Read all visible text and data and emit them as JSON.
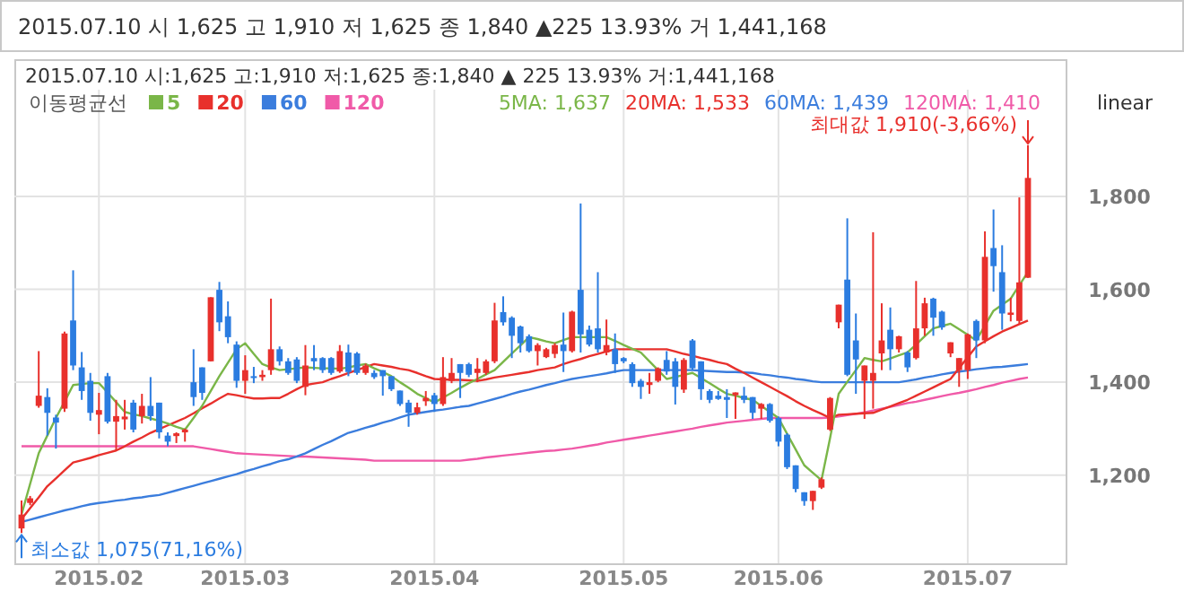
{
  "chart_data": {
    "type": "candlestick",
    "title": "2015.07.10  시 1,625  고 1,910  저 1,625  종 1,840 ▲225 13.93%  거 1,441,168",
    "subtitle": "2015.07.10 시:1,625 고:1,910 저:1,625 종:1,840 ▲ 225 13.93% 거:1,441,168",
    "legend_title": "이동평균선",
    "legend": "top left",
    "grid": true,
    "ylim": [
      1010,
      2030
    ],
    "yticks": [
      {
        "value": 1200,
        "label": "1,200"
      },
      {
        "value": 1400,
        "label": "1,400"
      },
      {
        "value": 1600,
        "label": "1,600"
      },
      {
        "value": 1800,
        "label": "1,800"
      }
    ],
    "categories": [
      null,
      null,
      null,
      null,
      null,
      null,
      null,
      null,
      null,
      "2015.02",
      null,
      null,
      null,
      null,
      null,
      null,
      null,
      null,
      null,
      null,
      null,
      null,
      null,
      null,
      null,
      null,
      "2015.03",
      null,
      null,
      null,
      null,
      null,
      null,
      null,
      null,
      null,
      null,
      null,
      null,
      null,
      null,
      null,
      null,
      null,
      null,
      null,
      null,
      null,
      "2015.04",
      null,
      null,
      null,
      null,
      null,
      null,
      null,
      null,
      null,
      null,
      null,
      null,
      null,
      null,
      null,
      null,
      null,
      null,
      null,
      null,
      null,
      "2015.05",
      null,
      null,
      null,
      null,
      null,
      null,
      null,
      null,
      null,
      null,
      null,
      null,
      null,
      null,
      null,
      null,
      null,
      "2015.06",
      null,
      null,
      null,
      null,
      null,
      null,
      null,
      null,
      null,
      null,
      null,
      null,
      null,
      null,
      null,
      null,
      null,
      null,
      null,
      null,
      null,
      "2015.07",
      null,
      null,
      null,
      null,
      null,
      null,
      null
    ],
    "ohlc": [
      [
        1085,
        1145,
        1075,
        1115
      ],
      [
        1140,
        1155,
        1135,
        1150
      ],
      [
        1349,
        1467,
        1345,
        1371
      ],
      [
        1368,
        1387,
        1285,
        1334
      ],
      [
        1324,
        1330,
        1257,
        1313
      ],
      [
        1343,
        1509,
        1336,
        1505
      ],
      [
        1533,
        1641,
        1426,
        1436
      ],
      [
        1432,
        1465,
        1362,
        1381
      ],
      [
        1403,
        1420,
        1317,
        1334
      ],
      [
        1330,
        1377,
        1288,
        1340
      ],
      [
        1413,
        1420,
        1311,
        1315
      ],
      [
        1315,
        1362,
        1253,
        1327
      ],
      [
        1320,
        1362,
        1298,
        1326
      ],
      [
        1356,
        1362,
        1292,
        1298
      ],
      [
        1327,
        1375,
        1311,
        1349
      ],
      [
        1349,
        1411,
        1317,
        1327
      ],
      [
        1356,
        1356,
        1279,
        1292
      ],
      [
        1285,
        1292,
        1262,
        1272
      ],
      [
        1284,
        1292,
        1269,
        1290
      ],
      [
        1292,
        1300,
        1272,
        1298
      ],
      [
        1400,
        1471,
        1349,
        1368
      ],
      [
        1432,
        1432,
        1362,
        1377
      ],
      [
        1445,
        1583,
        1445,
        1583
      ],
      [
        1599,
        1616,
        1510,
        1529
      ],
      [
        1542,
        1574,
        1484,
        1497
      ],
      [
        1481,
        1488,
        1388,
        1403
      ],
      [
        1403,
        1458,
        1375,
        1426
      ],
      [
        1413,
        1433,
        1398,
        1409
      ],
      [
        1411,
        1426,
        1403,
        1416
      ],
      [
        1426,
        1580,
        1416,
        1471
      ],
      [
        1471,
        1477,
        1436,
        1445
      ],
      [
        1445,
        1452,
        1416,
        1420
      ],
      [
        1449,
        1454,
        1398,
        1403
      ],
      [
        1390,
        1480,
        1372,
        1436
      ],
      [
        1452,
        1480,
        1426,
        1445
      ],
      [
        1452,
        1454,
        1420,
        1426
      ],
      [
        1452,
        1454,
        1416,
        1420
      ],
      [
        1423,
        1480,
        1420,
        1467
      ],
      [
        1464,
        1481,
        1413,
        1422
      ],
      [
        1462,
        1465,
        1416,
        1420
      ],
      [
        1420,
        1440,
        1416,
        1436
      ],
      [
        1420,
        1426,
        1407,
        1411
      ],
      [
        1426,
        1426,
        1371,
        1413
      ],
      [
        1413,
        1413,
        1381,
        1385
      ],
      [
        1382,
        1382,
        1349,
        1353
      ],
      [
        1356,
        1362,
        1304,
        1334
      ],
      [
        1334,
        1356,
        1330,
        1346
      ],
      [
        1359,
        1381,
        1349,
        1366
      ],
      [
        1372,
        1377,
        1336,
        1353
      ],
      [
        1353,
        1454,
        1349,
        1411
      ],
      [
        1403,
        1452,
        1398,
        1420
      ],
      [
        1439,
        1439,
        1366,
        1420
      ],
      [
        1439,
        1442,
        1411,
        1416
      ],
      [
        1420,
        1452,
        1400,
        1429
      ],
      [
        1420,
        1449,
        1416,
        1445
      ],
      [
        1445,
        1571,
        1441,
        1533
      ],
      [
        1551,
        1585,
        1522,
        1529
      ],
      [
        1539,
        1542,
        1452,
        1500
      ],
      [
        1520,
        1522,
        1464,
        1484
      ],
      [
        1499,
        1503,
        1464,
        1467
      ],
      [
        1467,
        1484,
        1436,
        1480
      ],
      [
        1454,
        1474,
        1452,
        1471
      ],
      [
        1461,
        1484,
        1452,
        1480
      ],
      [
        1481,
        1550,
        1422,
        1467
      ],
      [
        1467,
        1554,
        1464,
        1552
      ],
      [
        1599,
        1785,
        1464,
        1503
      ],
      [
        1513,
        1522,
        1477,
        1481
      ],
      [
        1516,
        1637,
        1464,
        1471
      ],
      [
        1464,
        1535,
        1458,
        1480
      ],
      [
        1471,
        1505,
        1420,
        1439
      ],
      [
        1452,
        1454,
        1441,
        1445
      ],
      [
        1439,
        1443,
        1390,
        1398
      ],
      [
        1403,
        1407,
        1364,
        1390
      ],
      [
        1394,
        1420,
        1375,
        1400
      ],
      [
        1403,
        1432,
        1400,
        1430
      ],
      [
        1448,
        1467,
        1416,
        1423
      ],
      [
        1445,
        1452,
        1352,
        1390
      ],
      [
        1384,
        1452,
        1377,
        1448
      ],
      [
        1490,
        1493,
        1426,
        1430
      ],
      [
        1445,
        1445,
        1362,
        1385
      ],
      [
        1381,
        1385,
        1355,
        1362
      ],
      [
        1371,
        1381,
        1362,
        1364
      ],
      [
        1368,
        1385,
        1323,
        1362
      ],
      [
        1372,
        1378,
        1321,
        1378
      ],
      [
        1371,
        1390,
        1355,
        1362
      ],
      [
        1368,
        1368,
        1321,
        1334
      ],
      [
        1343,
        1355,
        1321,
        1353
      ],
      [
        1353,
        1355,
        1313,
        1317
      ],
      [
        1323,
        1326,
        1262,
        1272
      ],
      [
        1287,
        1290,
        1213,
        1217
      ],
      [
        1221,
        1221,
        1163,
        1170
      ],
      [
        1163,
        1163,
        1134,
        1144
      ],
      [
        1144,
        1166,
        1125,
        1166
      ],
      [
        1173,
        1195,
        1170,
        1191
      ],
      [
        1298,
        1368,
        1295,
        1366
      ],
      [
        1529,
        1567,
        1516,
        1567
      ],
      [
        1621,
        1753,
        1413,
        1416
      ],
      [
        1490,
        1548,
        1375,
        1449
      ],
      [
        1403,
        1436,
        1321,
        1436
      ],
      [
        1403,
        1723,
        1343,
        1420
      ],
      [
        1462,
        1570,
        1426,
        1490
      ],
      [
        1513,
        1561,
        1426,
        1471
      ],
      [
        1471,
        1500,
        1464,
        1499
      ],
      [
        1464,
        1467,
        1422,
        1432
      ],
      [
        1452,
        1618,
        1449,
        1516
      ],
      [
        1516,
        1582,
        1500,
        1570
      ],
      [
        1580,
        1582,
        1500,
        1539
      ],
      [
        1552,
        1554,
        1513,
        1518
      ],
      [
        1462,
        1486,
        1454,
        1486
      ],
      [
        1426,
        1452,
        1390,
        1452
      ],
      [
        1426,
        1505,
        1407,
        1503
      ],
      [
        1532,
        1535,
        1452,
        1490
      ],
      [
        1490,
        1725,
        1484,
        1670
      ],
      [
        1689,
        1772,
        1595,
        1650
      ],
      [
        1637,
        1695,
        1513,
        1548
      ],
      [
        1545,
        1582,
        1531,
        1550
      ],
      [
        1532,
        1798,
        1526,
        1615
      ],
      [
        1625,
        1910,
        1625,
        1840
      ]
    ],
    "colors": [
      "#e8302c",
      "#e8302c",
      "#e8302c",
      "#2b7ce0",
      "#2b7ce0",
      "#e8302c",
      "#2b7ce0",
      "#2b7ce0",
      "#2b7ce0",
      "#e8302c",
      "#2b7ce0",
      "#e8302c",
      "#e8302c",
      "#2b7ce0",
      "#e8302c",
      "#2b7ce0",
      "#2b7ce0",
      "#2b7ce0",
      "#e8302c",
      "#e8302c",
      "#2b7ce0",
      "#2b7ce0",
      "#e8302c",
      "#2b7ce0",
      "#2b7ce0",
      "#2b7ce0",
      "#e8302c",
      "#2b7ce0",
      "#e8302c",
      "#e8302c",
      "#2b7ce0",
      "#2b7ce0",
      "#2b7ce0",
      "#e8302c",
      "#2b7ce0",
      "#2b7ce0",
      "#2b7ce0",
      "#e8302c",
      "#2b7ce0",
      "#2b7ce0",
      "#e8302c",
      "#2b7ce0",
      "#2b7ce0",
      "#2b7ce0",
      "#2b7ce0",
      "#2b7ce0",
      "#e8302c",
      "#e8302c",
      "#2b7ce0",
      "#e8302c",
      "#e8302c",
      "#2b7ce0",
      "#2b7ce0",
      "#e8302c",
      "#e8302c",
      "#e8302c",
      "#2b7ce0",
      "#2b7ce0",
      "#2b7ce0",
      "#2b7ce0",
      "#e8302c",
      "#e8302c",
      "#e8302c",
      "#2b7ce0",
      "#e8302c",
      "#2b7ce0",
      "#2b7ce0",
      "#2b7ce0",
      "#e8302c",
      "#2b7ce0",
      "#2b7ce0",
      "#2b7ce0",
      "#2b7ce0",
      "#e8302c",
      "#e8302c",
      "#2b7ce0",
      "#2b7ce0",
      "#e8302c",
      "#2b7ce0",
      "#2b7ce0",
      "#2b7ce0",
      "#2b7ce0",
      "#2b7ce0",
      "#e8302c",
      "#2b7ce0",
      "#2b7ce0",
      "#e8302c",
      "#2b7ce0",
      "#2b7ce0",
      "#2b7ce0",
      "#2b7ce0",
      "#2b7ce0",
      "#e8302c",
      "#e8302c",
      "#e8302c",
      "#e8302c",
      "#2b7ce0",
      "#2b7ce0",
      "#e8302c",
      "#e8302c",
      "#e8302c",
      "#2b7ce0",
      "#e8302c",
      "#2b7ce0",
      "#e8302c",
      "#e8302c",
      "#2b7ce0",
      "#2b7ce0",
      "#e8302c",
      "#e8302c",
      "#e8302c",
      "#2b7ce0",
      "#e8302c",
      "#2b7ce0",
      "#2b7ce0",
      "#e8302c",
      "#e8302c",
      "#e8302c"
    ],
    "series": [
      {
        "name": "5",
        "type": "line",
        "color": "#7ab648",
        "values": [
          1115,
          1181,
          1247,
          1285,
          1323,
          1358,
          1394,
          1396,
          1398,
          1398,
          1378,
          1357,
          1336,
          1331,
          1327,
          1322,
          1317,
          1311,
          1304,
          1298,
          1323,
          1349,
          1381,
          1413,
          1442,
          1471,
          1484,
          1461,
          1439,
          1432,
          1426,
          1428,
          1430,
          1432,
          1431,
          1430,
          1430,
          1429,
          1432,
          1436,
          1439,
          1430,
          1422,
          1413,
          1400,
          1388,
          1375,
          1366,
          1356,
          1367,
          1377,
          1388,
          1398,
          1407,
          1417,
          1426,
          1444,
          1462,
          1479,
          1497,
          1493,
          1488,
          1484,
          1491,
          1497,
          1497,
          1497,
          1497,
          1497,
          1489,
          1480,
          1472,
          1464,
          1445,
          1426,
          1407,
          1411,
          1416,
          1420,
          1409,
          1398,
          1386,
          1375,
          1371,
          1366,
          1362,
          1349,
          1336,
          1323,
          1289,
          1255,
          1221,
          1205,
          1189,
          1280,
          1375,
          1401,
          1426,
          1452,
          1448,
          1445,
          1451,
          1458,
          1464,
          1481,
          1499,
          1516,
          1521,
          1526,
          1514,
          1502,
          1490,
          1522,
          1554,
          1567,
          1580,
          1609,
          1637
        ]
      },
      {
        "name": "20",
        "type": "line",
        "color": "#e8302c",
        "values": [
          1105,
          1129,
          1152,
          1176,
          1193,
          1210,
          1227,
          1232,
          1237,
          1243,
          1248,
          1253,
          1262,
          1272,
          1281,
          1291,
          1299,
          1307,
          1315,
          1323,
          1333,
          1344,
          1354,
          1365,
          1375,
          1372,
          1368,
          1365,
          1365,
          1366,
          1366,
          1375,
          1385,
          1394,
          1397,
          1400,
          1407,
          1413,
          1420,
          1426,
          1433,
          1439,
          1436,
          1433,
          1429,
          1426,
          1420,
          1413,
          1407,
          1406,
          1405,
          1405,
          1404,
          1403,
          1406,
          1410,
          1413,
          1416,
          1419,
          1422,
          1426,
          1429,
          1432,
          1439,
          1445,
          1450,
          1456,
          1461,
          1466,
          1471,
          1471,
          1471,
          1471,
          1471,
          1471,
          1471,
          1466,
          1461,
          1457,
          1452,
          1448,
          1443,
          1439,
          1429,
          1420,
          1410,
          1400,
          1390,
          1380,
          1370,
          1359,
          1349,
          1340,
          1332,
          1323,
          1330,
          1331,
          1332,
          1333,
          1334,
          1341,
          1348,
          1355,
          1362,
          1371,
          1380,
          1389,
          1398,
          1407,
          1430,
          1454,
          1477,
          1488,
          1499,
          1509,
          1517,
          1525,
          1533
        ]
      },
      {
        "name": "60",
        "type": "line",
        "color": "#3b7ddd",
        "values": [
          1099,
          1104,
          1109,
          1114,
          1119,
          1124,
          1128,
          1133,
          1137,
          1140,
          1142,
          1145,
          1147,
          1150,
          1152,
          1155,
          1157,
          1162,
          1167,
          1172,
          1177,
          1182,
          1187,
          1192,
          1197,
          1202,
          1208,
          1213,
          1219,
          1224,
          1230,
          1234,
          1240,
          1247,
          1256,
          1265,
          1273,
          1282,
          1291,
          1296,
          1302,
          1307,
          1313,
          1318,
          1324,
          1330,
          1333,
          1336,
          1339,
          1341,
          1344,
          1347,
          1349,
          1354,
          1359,
          1364,
          1369,
          1375,
          1380,
          1384,
          1389,
          1394,
          1398,
          1403,
          1407,
          1410,
          1413,
          1416,
          1419,
          1423,
          1426,
          1426,
          1426,
          1426,
          1426,
          1426,
          1426,
          1426,
          1426,
          1425,
          1424,
          1423,
          1422,
          1422,
          1421,
          1420,
          1417,
          1415,
          1412,
          1410,
          1407,
          1405,
          1402,
          1400,
          1400,
          1400,
          1400,
          1400,
          1400,
          1400,
          1400,
          1400,
          1400,
          1403,
          1406,
          1410,
          1413,
          1417,
          1420,
          1423,
          1425,
          1428,
          1430,
          1432,
          1433,
          1435,
          1437,
          1439
        ]
      },
      {
        "name": "120",
        "type": "line",
        "color": "#f05aa8",
        "values": [
          1262,
          1262,
          1262,
          1262,
          1262,
          1262,
          1262,
          1262,
          1262,
          1262,
          1262,
          1262,
          1262,
          1262,
          1262,
          1262,
          1262,
          1262,
          1262,
          1262,
          1262,
          1259,
          1256,
          1253,
          1250,
          1247,
          1246,
          1245,
          1244,
          1243,
          1242,
          1241,
          1240,
          1240,
          1239,
          1238,
          1237,
          1236,
          1235,
          1234,
          1233,
          1231,
          1231,
          1231,
          1231,
          1231,
          1231,
          1231,
          1231,
          1231,
          1231,
          1231,
          1233,
          1235,
          1238,
          1240,
          1242,
          1244,
          1246,
          1248,
          1250,
          1252,
          1253,
          1255,
          1257,
          1260,
          1263,
          1266,
          1270,
          1273,
          1276,
          1279,
          1282,
          1285,
          1288,
          1291,
          1294,
          1297,
          1300,
          1304,
          1307,
          1310,
          1313,
          1315,
          1317,
          1319,
          1321,
          1323,
          1323,
          1323,
          1323,
          1323,
          1323,
          1323,
          1324,
          1326,
          1329,
          1332,
          1335,
          1339,
          1343,
          1347,
          1351,
          1355,
          1358,
          1362,
          1366,
          1370,
          1374,
          1377,
          1381,
          1385,
          1390,
          1394,
          1399,
          1403,
          1407,
          1410
        ]
      }
    ],
    "annotations": [
      "최대값 1,910(-3,66%)",
      "최소값 1,075(71,16%)",
      "5MA: 1,637",
      "20MA: 1,533",
      "60MA: 1,439",
      "120MA: 1,410",
      "linear"
    ]
  }
}
